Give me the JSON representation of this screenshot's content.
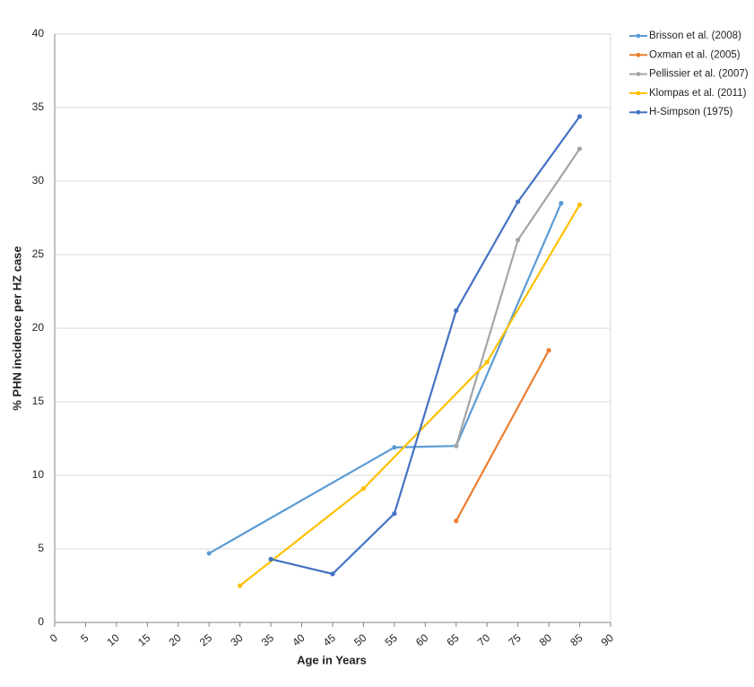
{
  "chart_data": {
    "type": "line",
    "x_label": "Age in Years",
    "y_label": "% PHN incidence per HZ case",
    "xlim": [
      0,
      90
    ],
    "xticks": [
      0,
      5,
      10,
      15,
      20,
      25,
      30,
      35,
      40,
      45,
      50,
      55,
      60,
      65,
      70,
      75,
      80,
      85,
      90
    ],
    "ylim": [
      0,
      40
    ],
    "yticks": [
      0,
      5,
      10,
      15,
      20,
      25,
      30,
      35,
      40
    ],
    "grid": true,
    "legend": "right",
    "series": [
      {
        "name": "Brisson et al. (2008)",
        "color": "#5B9BD5",
        "x": [
          25,
          55,
          65,
          82
        ],
        "values": [
          4.7,
          11.9,
          12,
          28.5
        ]
      },
      {
        "name": "Oxman et al. (2005)",
        "color": "#ED7D31",
        "x": [
          65,
          80
        ],
        "values": [
          6.9,
          18.5
        ]
      },
      {
        "name": "Pellissier et al. (2007)",
        "color": "#A5A5A5",
        "x": [
          65,
          75,
          85
        ],
        "values": [
          12,
          26,
          32.2
        ]
      },
      {
        "name": "Klompas et al. (2011)",
        "color": "#FFC000",
        "x": [
          30,
          50,
          70,
          85
        ],
        "values": [
          2.5,
          9.1,
          17.7,
          28.4
        ]
      },
      {
        "name": "H-Simpson (1975)",
        "color": "#4472C4",
        "x": [
          35,
          45,
          55,
          65,
          75,
          85
        ],
        "values": [
          4.3,
          3.3,
          7.4,
          21.2,
          28.6,
          34.4
        ]
      }
    ]
  }
}
